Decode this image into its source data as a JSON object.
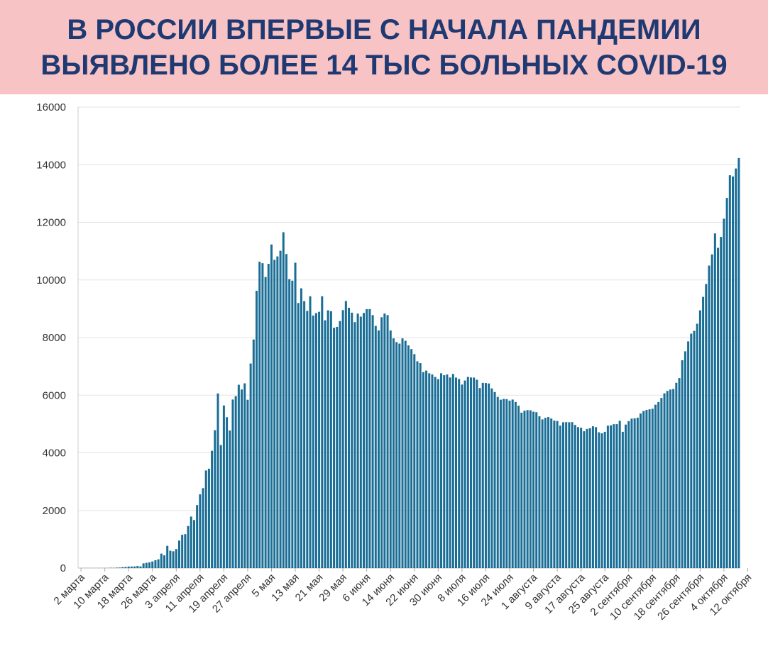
{
  "header": {
    "title": "В РОССИИ ВПЕРВЫЕ С НАЧАЛА ПАНДЕМИИ\nВЫЯВЛЕНО БОЛЕЕ 14 ТЫС БОЛЬНЫХ COVID-19"
  },
  "colors": {
    "banner": "#f8c3c4",
    "title": "#1f3a73",
    "bar": "#1a6e96",
    "grid": "#e3e3e3"
  },
  "chart_data": {
    "type": "bar",
    "title": "",
    "xlabel": "",
    "ylabel": "",
    "ylim": [
      0,
      16000
    ],
    "yticks": [
      0,
      2000,
      4000,
      6000,
      8000,
      10000,
      12000,
      14000,
      16000
    ],
    "grid": "horizontal",
    "start_date": "2 марта",
    "x_tick_labels": [
      "2 марта",
      "10 марта",
      "18 марта",
      "26 марта",
      "3 апреля",
      "11 апреля",
      "19 апреля",
      "27 апреля",
      "5 мая",
      "13 мая",
      "21 мая",
      "29 мая",
      "6 июня",
      "14 июня",
      "22 июня",
      "30 июня",
      "8 июля",
      "16 июля",
      "24 июля",
      "1 августа",
      "9 августа",
      "17 августа",
      "25 августа",
      "2 сентября",
      "10 сентября",
      "18 сентября",
      "26 сентября",
      "4 октября",
      "12 октября"
    ],
    "values": [
      0,
      1,
      2,
      1,
      1,
      1,
      2,
      2,
      3,
      4,
      10,
      6,
      14,
      18,
      30,
      36,
      52,
      53,
      56,
      71,
      57,
      163,
      182,
      196,
      228,
      270,
      302,
      501,
      440,
      771,
      601,
      582,
      658,
      954,
      1154,
      1175,
      1459,
      1786,
      1667,
      2186,
      2558,
      2774,
      3388,
      3448,
      4070,
      4785,
      6060,
      4268,
      5642,
      5236,
      4774,
      5849,
      5966,
      6361,
      6198,
      6411,
      5841,
      7099,
      7933,
      9623,
      10633,
      10581,
      10102,
      10559,
      11231,
      10699,
      10817,
      11012,
      11656,
      10899,
      10028,
      9974,
      10598,
      9200,
      9709,
      9263,
      8926,
      9434,
      8764,
      8849,
      8894,
      9434,
      8599,
      8946,
      8915,
      8338,
      8371,
      8572,
      8952,
      9268,
      9035,
      8863,
      8536,
      8831,
      8726,
      8855,
      8985,
      8987,
      8779,
      8404,
      8248,
      8706,
      8835,
      8779,
      8246,
      7972,
      7843,
      7790,
      7972,
      7889,
      7728,
      7600,
      7425,
      7176,
      7113,
      6800,
      6852,
      6760,
      6719,
      6632,
      6556,
      6760,
      6693,
      6718,
      6615,
      6736,
      6611,
      6562,
      6368,
      6509,
      6635,
      6615,
      6611,
      6537,
      6248,
      6428,
      6422,
      6406,
      6234,
      6109,
      5940,
      5842,
      5871,
      5862,
      5811,
      5848,
      5765,
      5635,
      5394,
      5462,
      5482,
      5475,
      5427,
      5409,
      5267,
      5159,
      5212,
      5241,
      5189,
      5118,
      5102,
      4945,
      5061,
      5065,
      5061,
      5065,
      4969,
      4892,
      4870,
      4748,
      4829,
      4852,
      4921,
      4890,
      4711,
      4676,
      4729,
      4941,
      4952,
      4993,
      4995,
      5110,
      4729,
      4980,
      5099,
      5185,
      5195,
      5218,
      5363,
      5449,
      5488,
      5509,
      5529,
      5670,
      5762,
      5905,
      6065,
      6148,
      6196,
      6215,
      6431,
      6595,
      7212,
      7523,
      7867,
      8135,
      8232,
      8481,
      8945,
      9412,
      9859,
      10499,
      10888,
      11615,
      11115,
      11493,
      12126,
      12846,
      13634,
      13592,
      13868,
      14231
    ]
  }
}
